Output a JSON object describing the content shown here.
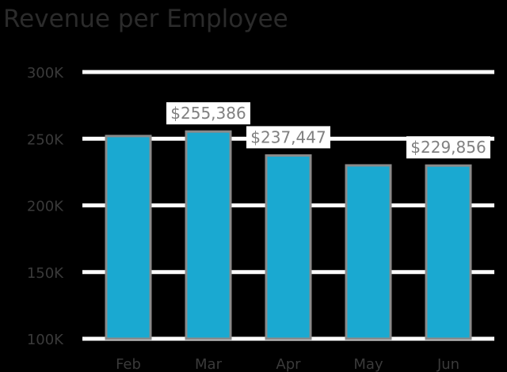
{
  "title": "Revenue per Employee",
  "chart_data": {
    "type": "bar",
    "title": "Revenue per Employee",
    "xlabel": "",
    "ylabel": "",
    "categories": [
      "Feb",
      "Mar",
      "Apr",
      "May",
      "Jun"
    ],
    "values": [
      252000,
      255386,
      237447,
      230000,
      229856
    ],
    "data_labels": [
      "",
      "$255,386",
      "$237,447",
      "",
      "$229,856"
    ],
    "ylim": [
      100000,
      300000
    ],
    "yticks": [
      100000,
      150000,
      200000,
      250000,
      300000
    ],
    "ytick_labels": [
      "100K",
      "150K",
      "200K",
      "250K",
      "300K"
    ],
    "grid": true,
    "legend": "none",
    "colors": {
      "bar": "#1aa9d1",
      "bar_edge": "#8a8a8a",
      "grid": "#ffffff",
      "background": "#000000",
      "text": "#3a3a3a",
      "label_text": "#808080",
      "label_box": "#ffffff"
    }
  }
}
